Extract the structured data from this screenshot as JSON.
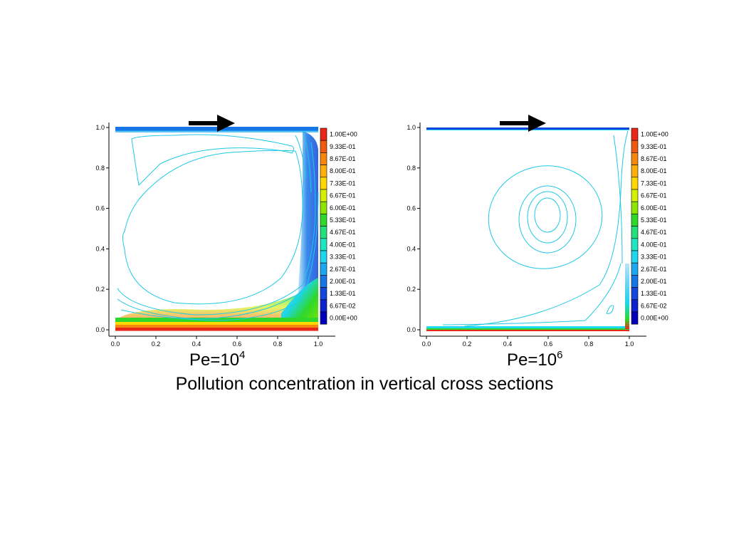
{
  "caption": "Pollution concentration in vertical cross sections",
  "colors": {
    "contour_line": "#1ec8e6",
    "arrow": "#000000",
    "frame": "#000000"
  },
  "axes": {
    "x_ticks": [
      "0.0",
      "0.2",
      "0.4",
      "0.6",
      "0.8",
      "1.0"
    ],
    "y_ticks": [
      "0.0",
      "0.2",
      "0.4",
      "0.6",
      "0.8",
      "1.0"
    ]
  },
  "legend": {
    "levels": [
      {
        "label": "1.00E+00",
        "color": "#e8261a"
      },
      {
        "label": "9.33E-01",
        "color": "#f05a10"
      },
      {
        "label": "8.67E-01",
        "color": "#f7860c"
      },
      {
        "label": "8.00E-01",
        "color": "#fbb00a"
      },
      {
        "label": "7.33E-01",
        "color": "#ffd800"
      },
      {
        "label": "6.67E-01",
        "color": "#d2f000"
      },
      {
        "label": "6.00E-01",
        "color": "#8ce600"
      },
      {
        "label": "5.33E-01",
        "color": "#2ed82a"
      },
      {
        "label": "4.67E-01",
        "color": "#22e07a"
      },
      {
        "label": "4.00E-01",
        "color": "#1ee6c0"
      },
      {
        "label": "3.33E-01",
        "color": "#1ed6ee"
      },
      {
        "label": "2.67E-01",
        "color": "#1aa8f0"
      },
      {
        "label": "2.00E-01",
        "color": "#1676e6"
      },
      {
        "label": "1.33E-01",
        "color": "#1246dc"
      },
      {
        "label": "6.67E-02",
        "color": "#0c22cc"
      },
      {
        "label": "0.00E+00",
        "color": "#0000b8"
      }
    ]
  },
  "panels": [
    {
      "id": "pe4",
      "pe_base": "Pe=10",
      "pe_exp": "4"
    },
    {
      "id": "pe6",
      "pe_base": "Pe=10",
      "pe_exp": "6"
    }
  ]
}
